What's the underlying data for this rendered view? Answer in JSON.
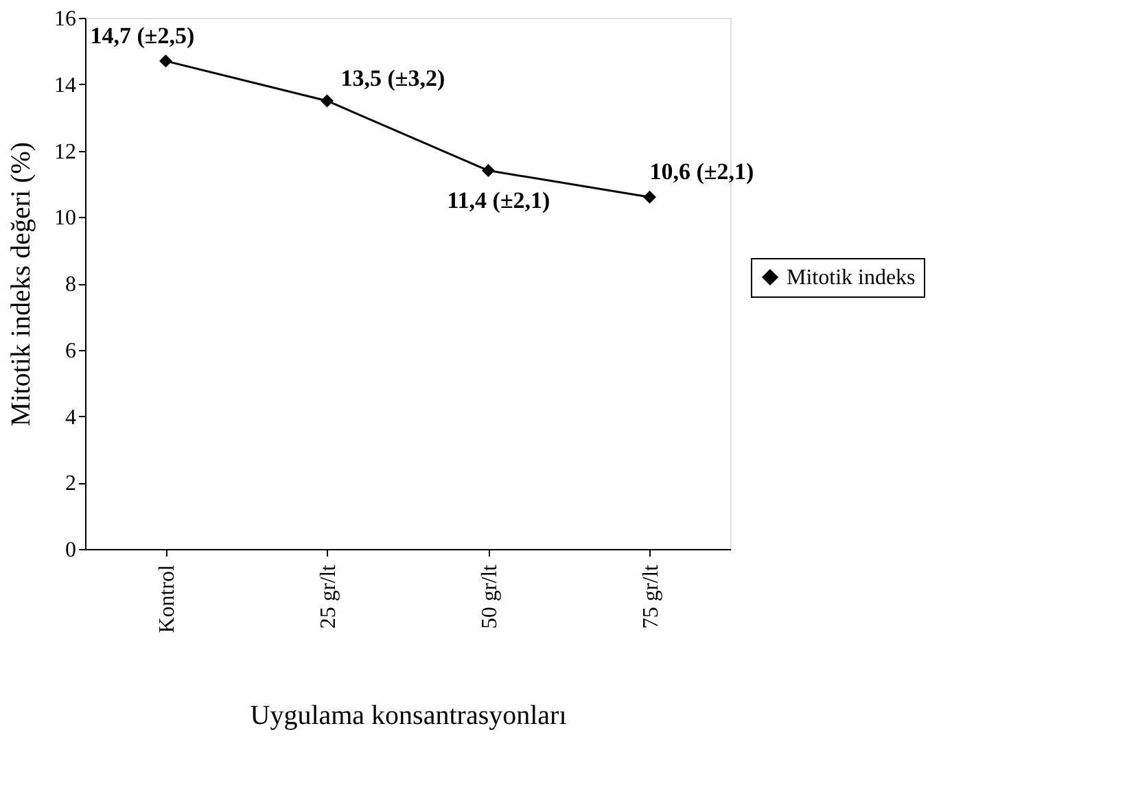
{
  "chart_data": {
    "type": "line",
    "xlabel": "Uygulama konsantrasyonları",
    "ylabel": "Mitotik indeks değeri (%)",
    "categories": [
      "Kontrol",
      "25 gr/lt",
      "50 gr/lt",
      "75 gr/lt"
    ],
    "series": [
      {
        "name": "Mitotik indeks",
        "color": "#000000",
        "values": [
          14.7,
          13.5,
          11.4,
          10.6
        ],
        "value_labels": [
          "14,7 (±2,5)",
          "13,5 (±3,2)",
          "11,4 (±2,1)",
          "10,6 (±2,1)"
        ]
      }
    ],
    "ylim": [
      0,
      16
    ],
    "yticks": [
      0,
      2,
      4,
      6,
      8,
      10,
      12,
      14,
      16
    ],
    "grid": false,
    "legend": "right",
    "marker": "diamond",
    "line_style": "solid"
  }
}
